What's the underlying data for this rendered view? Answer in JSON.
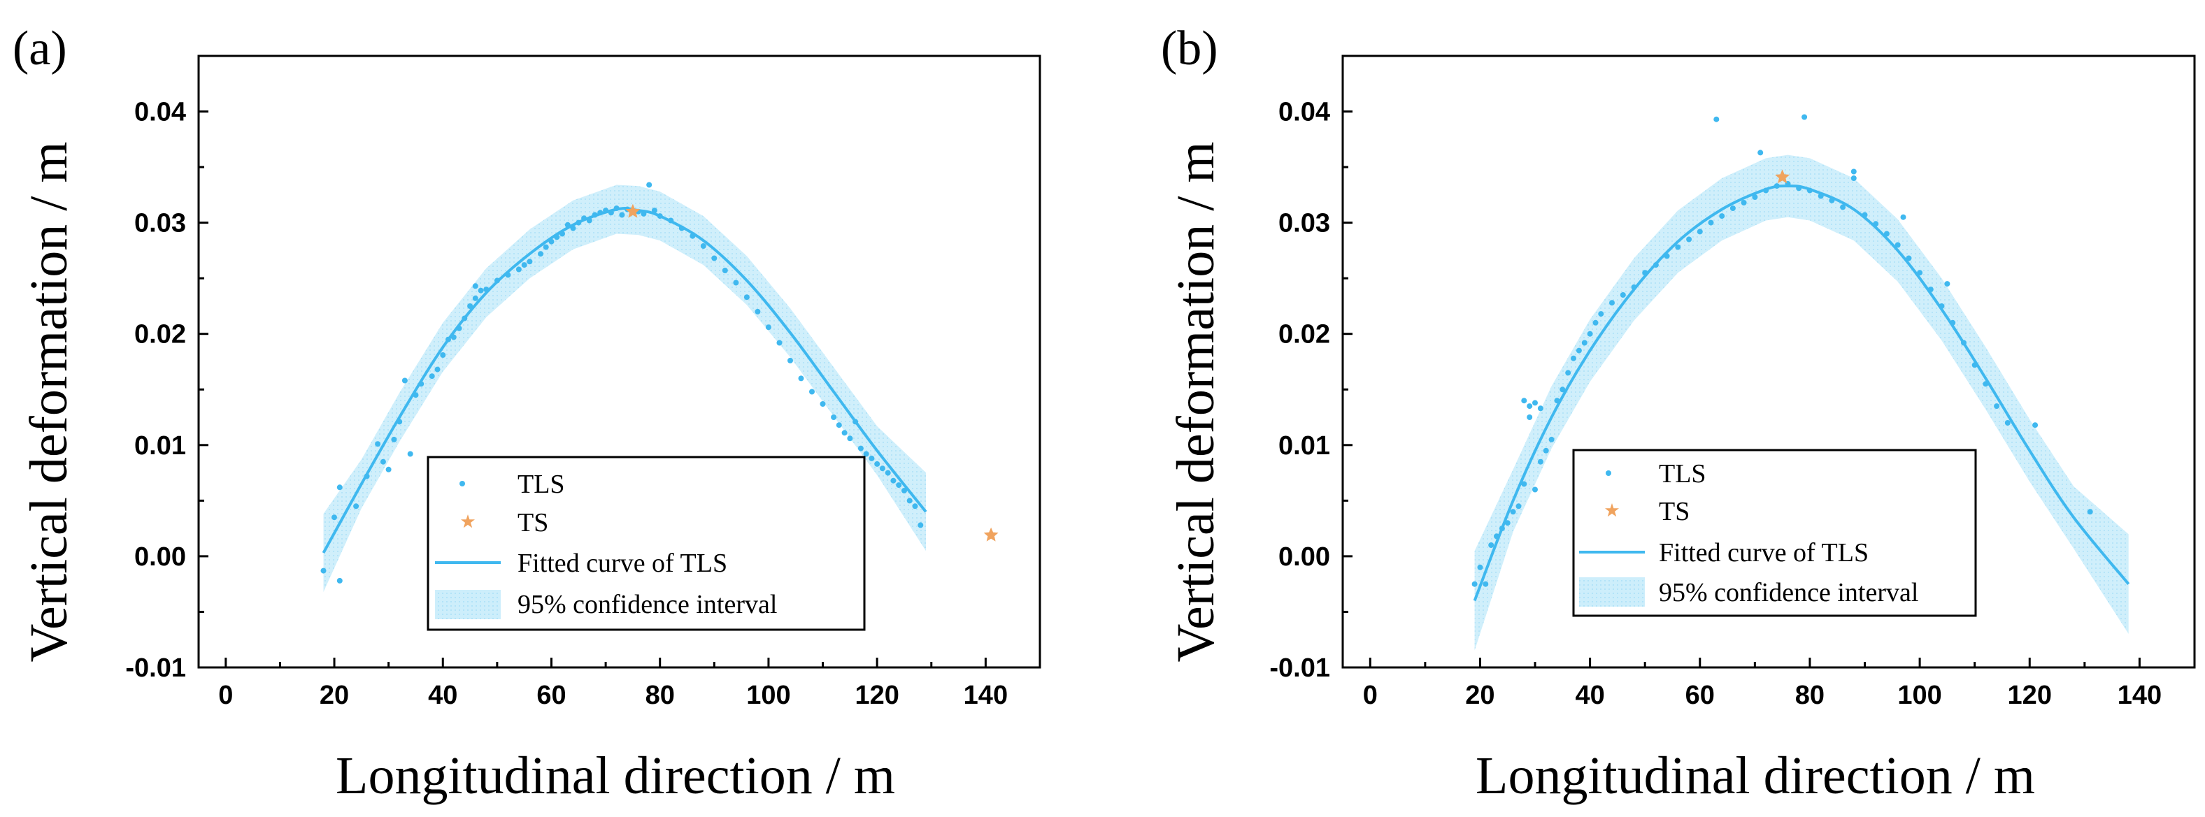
{
  "colors": {
    "tls": "#3fb8ef",
    "ts": "#f0a35e",
    "fit": "#3fb8ef",
    "ci": "#bfe9fa"
  },
  "chart_data": [
    {
      "type": "scatter",
      "panel_label": "(a)",
      "xlabel": "Longitudinal direction / m",
      "ylabel": "Vertical deformation / m",
      "xlim": [
        -5,
        150
      ],
      "ylim": [
        -0.01,
        0.045
      ],
      "x_ticks": [
        0,
        20,
        40,
        60,
        80,
        100,
        120,
        140
      ],
      "y_ticks": [
        -0.01,
        0.0,
        0.01,
        0.02,
        0.03,
        0.04
      ],
      "x_tick_labels": [
        "0",
        "20",
        "40",
        "60",
        "80",
        "100",
        "120",
        "140"
      ],
      "y_tick_labels": [
        "-0.01",
        "0.00",
        "0.01",
        "0.02",
        "0.03",
        "0.04"
      ],
      "legend": {
        "position": "bottom-center",
        "entries": [
          {
            "kind": "dot",
            "label": "TLS"
          },
          {
            "kind": "star",
            "label": "TS"
          },
          {
            "kind": "line",
            "label": "Fitted curve of TLS"
          },
          {
            "kind": "band",
            "label": "95% confidence interval"
          }
        ]
      },
      "fitted_curve": {
        "x": [
          18,
          25,
          32,
          40,
          48,
          56,
          64,
          72,
          76,
          80,
          88,
          96,
          104,
          112,
          120,
          129
        ],
        "y": [
          0.0003,
          0.0065,
          0.0125,
          0.0188,
          0.0237,
          0.0272,
          0.0298,
          0.0312,
          0.0311,
          0.0306,
          0.0284,
          0.0248,
          0.0201,
          0.0148,
          0.0095,
          0.004
        ]
      },
      "ci_halfwidth": 0.0022,
      "series": [
        {
          "name": "TLS",
          "x": [
            18,
            20,
            21,
            21,
            24,
            26,
            28,
            29,
            30,
            31,
            32,
            33,
            34,
            35,
            36,
            38,
            39,
            40,
            41,
            42,
            43,
            44,
            45,
            46,
            46,
            47,
            48,
            50,
            52,
            54,
            55,
            56,
            58,
            59,
            60,
            61,
            62,
            63,
            64,
            65,
            66,
            67,
            68,
            69,
            70,
            71,
            72,
            73,
            74,
            76,
            77,
            78,
            79,
            80,
            82,
            84,
            86,
            88,
            90,
            92,
            94,
            96,
            98,
            100,
            102,
            104,
            106,
            108,
            110,
            112,
            113,
            114,
            115,
            116,
            117,
            118,
            119,
            120,
            121,
            122,
            123,
            124,
            125,
            126,
            127,
            128
          ],
          "y": [
            -0.0013,
            0.0035,
            0.0062,
            -0.0022,
            0.0045,
            0.0072,
            0.0101,
            0.0085,
            0.0078,
            0.0105,
            0.0121,
            0.0158,
            0.0092,
            0.0145,
            0.0155,
            0.0162,
            0.0168,
            0.0181,
            0.0195,
            0.0197,
            0.0205,
            0.0214,
            0.0225,
            0.0243,
            0.0232,
            0.0239,
            0.024,
            0.0248,
            0.0253,
            0.0258,
            0.0262,
            0.0265,
            0.0272,
            0.0278,
            0.0283,
            0.0287,
            0.029,
            0.0298,
            0.0295,
            0.03,
            0.0304,
            0.0302,
            0.0307,
            0.0309,
            0.0311,
            0.0309,
            0.0313,
            0.0307,
            0.0312,
            0.031,
            0.0308,
            0.0334,
            0.0311,
            0.0306,
            0.0302,
            0.0295,
            0.0288,
            0.0279,
            0.0268,
            0.0257,
            0.0246,
            0.0233,
            0.022,
            0.0206,
            0.0192,
            0.0176,
            0.016,
            0.0148,
            0.0137,
            0.0125,
            0.0118,
            0.0111,
            0.0106,
            0.0121,
            0.0097,
            0.0092,
            0.0088,
            0.0083,
            0.0079,
            0.0075,
            0.0068,
            0.0064,
            0.0059,
            0.005,
            0.0045,
            0.0028
          ]
        },
        {
          "name": "TS",
          "x": [
            75,
            141
          ],
          "y": [
            0.031,
            0.0019
          ]
        }
      ]
    },
    {
      "type": "scatter",
      "panel_label": "(b)",
      "xlabel": "Longitudinal direction / m",
      "ylabel": "Vertical deformation / m",
      "xlim": [
        -5,
        150
      ],
      "ylim": [
        -0.01,
        0.045
      ],
      "x_ticks": [
        0,
        20,
        40,
        60,
        80,
        100,
        120,
        140
      ],
      "y_ticks": [
        -0.01,
        0.0,
        0.01,
        0.02,
        0.03,
        0.04
      ],
      "x_tick_labels": [
        "0",
        "20",
        "40",
        "60",
        "80",
        "100",
        "120",
        "140"
      ],
      "y_tick_labels": [
        "-0.01",
        "0.00",
        "0.01",
        "0.02",
        "0.03",
        "0.04"
      ],
      "legend": {
        "position": "bottom-center",
        "entries": [
          {
            "kind": "dot",
            "label": "TLS"
          },
          {
            "kind": "star",
            "label": "TS"
          },
          {
            "kind": "line",
            "label": "Fitted curve of TLS"
          },
          {
            "kind": "band",
            "label": "95% confidence interval"
          }
        ]
      },
      "fitted_curve": {
        "x": [
          19,
          26,
          33,
          40,
          48,
          56,
          64,
          72,
          76,
          80,
          88,
          96,
          104,
          112,
          120,
          128,
          138
        ],
        "y": [
          -0.004,
          0.005,
          0.0125,
          0.0185,
          0.024,
          0.0283,
          0.0312,
          0.033,
          0.0333,
          0.033,
          0.0312,
          0.0275,
          0.0222,
          0.016,
          0.0095,
          0.0035,
          -0.0025
        ]
      },
      "ci_halfwidth": 0.0028,
      "series": [
        {
          "name": "TLS",
          "x": [
            19,
            20,
            21,
            22,
            23,
            24,
            25,
            26,
            27,
            28,
            28,
            29,
            29,
            30,
            30,
            31,
            31,
            32,
            33,
            34,
            35,
            36,
            37,
            38,
            39,
            40,
            41,
            42,
            44,
            46,
            48,
            50,
            52,
            54,
            56,
            58,
            60,
            62,
            63,
            64,
            66,
            68,
            70,
            71,
            72,
            74,
            76,
            78,
            79,
            80,
            82,
            84,
            86,
            88,
            88,
            90,
            92,
            94,
            96,
            97,
            98,
            100,
            102,
            104,
            105,
            106,
            108,
            110,
            112,
            114,
            116,
            121,
            131
          ],
          "y": [
            -0.0025,
            -0.001,
            -0.0025,
            0.001,
            0.0018,
            0.0025,
            0.003,
            0.004,
            0.0045,
            0.0065,
            0.014,
            0.0135,
            0.0125,
            0.0138,
            0.006,
            0.0085,
            0.0133,
            0.0095,
            0.0105,
            0.014,
            0.015,
            0.0165,
            0.0178,
            0.0185,
            0.0192,
            0.02,
            0.021,
            0.0218,
            0.0228,
            0.0235,
            0.0242,
            0.0255,
            0.0262,
            0.027,
            0.0278,
            0.0285,
            0.0292,
            0.03,
            0.0393,
            0.0306,
            0.0313,
            0.0318,
            0.0323,
            0.0363,
            0.0329,
            0.0333,
            0.0335,
            0.0331,
            0.0395,
            0.0329,
            0.0324,
            0.032,
            0.0314,
            0.034,
            0.0346,
            0.0307,
            0.0299,
            0.029,
            0.028,
            0.0305,
            0.0268,
            0.0255,
            0.024,
            0.0225,
            0.0245,
            0.021,
            0.0192,
            0.0172,
            0.0155,
            0.0135,
            0.012,
            0.0118,
            0.004
          ]
        },
        {
          "name": "TS",
          "x": [
            75
          ],
          "y": [
            0.0341
          ]
        }
      ]
    }
  ]
}
